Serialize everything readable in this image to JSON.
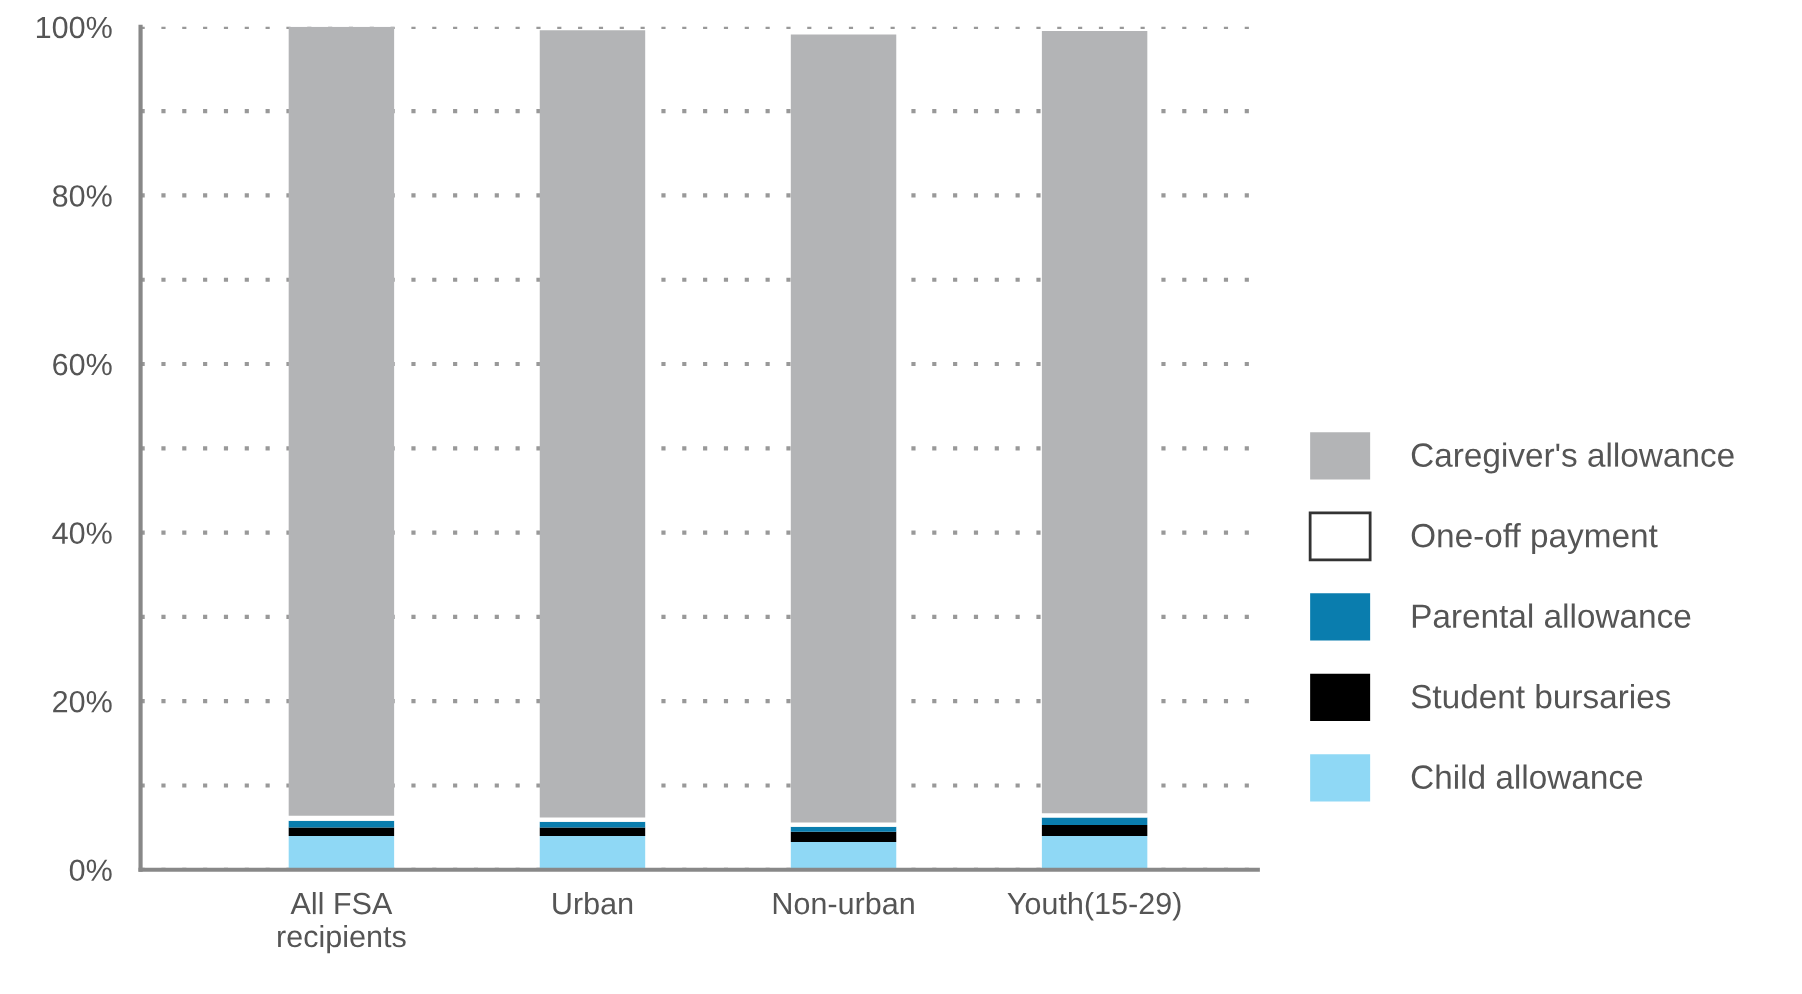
{
  "chart_data": {
    "type": "bar",
    "stacked": true,
    "categories": [
      "All FSA\nrecipients",
      "Urban",
      "Non-urban",
      "Youth(15-29)"
    ],
    "series": [
      {
        "name": "Child allowance",
        "color": "#8fd8f5",
        "values": [
          4.0,
          4.0,
          3.3,
          4.0
        ]
      },
      {
        "name": "Student bursaries",
        "color": "#000000",
        "values": [
          1.0,
          1.0,
          1.2,
          1.3
        ]
      },
      {
        "name": "Parental allowance",
        "color": "#0a7dae",
        "values": [
          0.8,
          0.7,
          0.6,
          0.9
        ]
      },
      {
        "name": "One-off payment",
        "color": "#ffffff",
        "values": [
          0.6,
          0.5,
          0.5,
          0.5
        ]
      },
      {
        "name": "Caregiver's allowance",
        "color": "#b3b4b6",
        "values": [
          93.6,
          93.4,
          93.5,
          92.8
        ]
      }
    ],
    "ylim": [
      0,
      100
    ],
    "yticks": [
      {
        "value": 0,
        "label": "0%"
      },
      {
        "value": 10,
        "label": null
      },
      {
        "value": 20,
        "label": "20%"
      },
      {
        "value": 30,
        "label": null
      },
      {
        "value": 40,
        "label": "40%"
      },
      {
        "value": 50,
        "label": null
      },
      {
        "value": 60,
        "label": "60%"
      },
      {
        "value": 70,
        "label": null
      },
      {
        "value": 80,
        "label": "80%"
      },
      {
        "value": 90,
        "label": null
      },
      {
        "value": 100,
        "label": "100%"
      }
    ],
    "grid": "y",
    "legend": "right"
  }
}
